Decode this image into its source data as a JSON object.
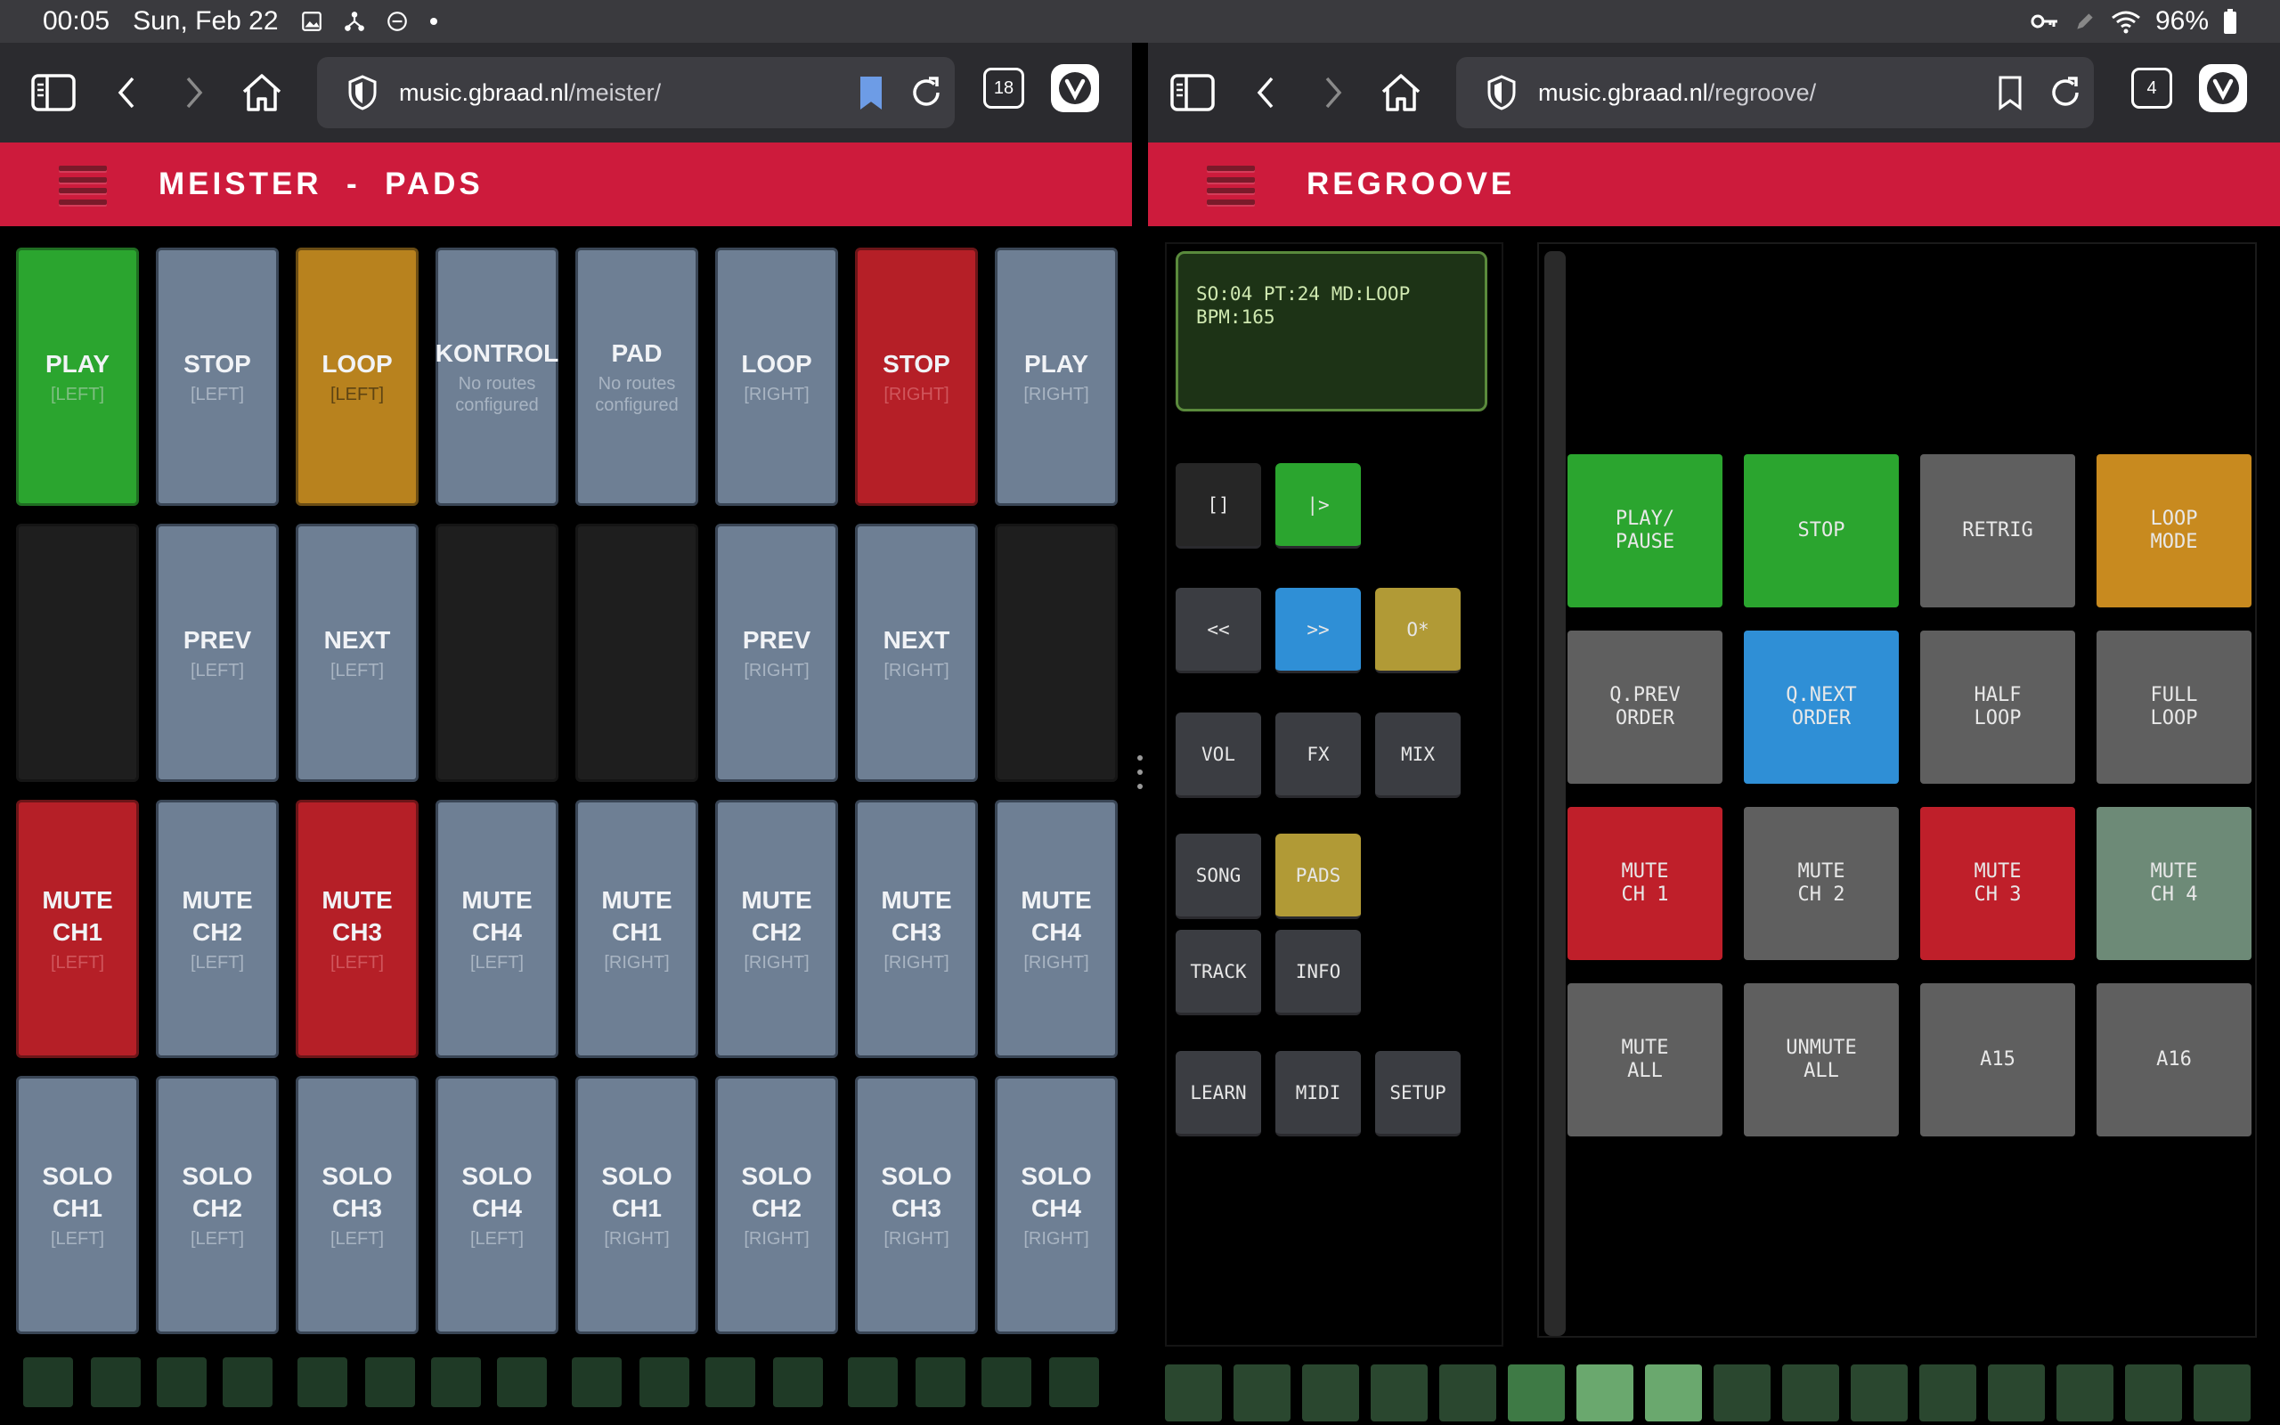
{
  "status_bar": {
    "time": "00:05",
    "date": "Sun, Feb 22",
    "battery": "96%"
  },
  "left_browser": {
    "url_host": "music.gbraad.nl",
    "url_path": "/meister/",
    "tab_count": "18"
  },
  "right_browser": {
    "url_host": "music.gbraad.nl",
    "url_path": "/regroove/",
    "tab_count": "4"
  },
  "meister": {
    "title": "MEISTER  -  PADS",
    "pads": [
      {
        "label": "PLAY",
        "sub": "[LEFT]",
        "color": "green"
      },
      {
        "label": "STOP",
        "sub": "[LEFT]",
        "color": "slate"
      },
      {
        "label": "LOOP",
        "sub": "[LEFT]",
        "color": "orange"
      },
      {
        "label": "KONTROL",
        "sub": "No routes configured",
        "color": "slate"
      },
      {
        "label": "PAD",
        "sub": "No routes configured",
        "color": "slate"
      },
      {
        "label": "LOOP",
        "sub": "[RIGHT]",
        "color": "slate"
      },
      {
        "label": "STOP",
        "sub": "[RIGHT]",
        "color": "red"
      },
      {
        "label": "PLAY",
        "sub": "[RIGHT]",
        "color": "slate"
      },
      {
        "label": "",
        "sub": "",
        "color": "empty"
      },
      {
        "label": "PREV",
        "sub": "[LEFT]",
        "color": "slate"
      },
      {
        "label": "NEXT",
        "sub": "[LEFT]",
        "color": "slate"
      },
      {
        "label": "",
        "sub": "",
        "color": "empty"
      },
      {
        "label": "",
        "sub": "",
        "color": "empty"
      },
      {
        "label": "PREV",
        "sub": "[RIGHT]",
        "color": "slate"
      },
      {
        "label": "NEXT",
        "sub": "[RIGHT]",
        "color": "slate"
      },
      {
        "label": "",
        "sub": "",
        "color": "empty"
      },
      {
        "label": "MUTE CH1",
        "sub": "[LEFT]",
        "color": "red"
      },
      {
        "label": "MUTE CH2",
        "sub": "[LEFT]",
        "color": "slate"
      },
      {
        "label": "MUTE CH3",
        "sub": "[LEFT]",
        "color": "red"
      },
      {
        "label": "MUTE CH4",
        "sub": "[LEFT]",
        "color": "slate"
      },
      {
        "label": "MUTE CH1",
        "sub": "[RIGHT]",
        "color": "slate"
      },
      {
        "label": "MUTE CH2",
        "sub": "[RIGHT]",
        "color": "slate"
      },
      {
        "label": "MUTE CH3",
        "sub": "[RIGHT]",
        "color": "slate"
      },
      {
        "label": "MUTE CH4",
        "sub": "[RIGHT]",
        "color": "slate"
      },
      {
        "label": "SOLO CH1",
        "sub": "[LEFT]",
        "color": "slate"
      },
      {
        "label": "SOLO CH2",
        "sub": "[LEFT]",
        "color": "slate"
      },
      {
        "label": "SOLO CH3",
        "sub": "[LEFT]",
        "color": "slate"
      },
      {
        "label": "SOLO CH4",
        "sub": "[LEFT]",
        "color": "slate"
      },
      {
        "label": "SOLO CH1",
        "sub": "[RIGHT]",
        "color": "slate"
      },
      {
        "label": "SOLO CH2",
        "sub": "[RIGHT]",
        "color": "slate"
      },
      {
        "label": "SOLO CH3",
        "sub": "[RIGHT]",
        "color": "slate"
      },
      {
        "label": "SOLO CH4",
        "sub": "[RIGHT]",
        "color": "slate"
      }
    ],
    "indicators_count": 16
  },
  "regroove": {
    "title": "REGROOVE",
    "lcd": "SO:04 PT:24 MD:LOOP\nBPM:165",
    "side_buttons": [
      {
        "label": "[]",
        "color": "dark"
      },
      {
        "label": "|>",
        "color": "green"
      },
      {
        "label": "<<",
        "color": "gray"
      },
      {
        "label": ">>",
        "color": "blue"
      },
      {
        "label": "O*",
        "color": "gold"
      },
      {
        "label": "VOL",
        "color": "gray"
      },
      {
        "label": "FX",
        "color": "gray"
      },
      {
        "label": "MIX",
        "color": "gray"
      },
      {
        "label": "SONG",
        "color": "gray"
      },
      {
        "label": "PADS",
        "color": "gold"
      },
      {
        "label": "TRACK",
        "color": "gray"
      },
      {
        "label": "INFO",
        "color": "gray"
      },
      {
        "label": "LEARN",
        "color": "gray"
      },
      {
        "label": "MIDI",
        "color": "gray"
      },
      {
        "label": "SETUP",
        "color": "gray"
      }
    ],
    "pads": [
      {
        "label": "PLAY/\nPAUSE",
        "color": "green"
      },
      {
        "label": "STOP",
        "color": "green"
      },
      {
        "label": "RETRIG",
        "color": "gray"
      },
      {
        "label": "LOOP\nMODE",
        "color": "orange"
      },
      {
        "label": "Q.PREV\nORDER",
        "color": "gray"
      },
      {
        "label": "Q.NEXT\nORDER",
        "color": "blue"
      },
      {
        "label": "HALF\nLOOP",
        "color": "gray"
      },
      {
        "label": "FULL\nLOOP",
        "color": "gray"
      },
      {
        "label": "MUTE\nCH 1",
        "color": "red"
      },
      {
        "label": "MUTE\nCH 2",
        "color": "gray"
      },
      {
        "label": "MUTE\nCH 3",
        "color": "red"
      },
      {
        "label": "MUTE\nCH 4",
        "color": "sage"
      },
      {
        "label": "MUTE\nALL",
        "color": "gray"
      },
      {
        "label": "UNMUTE\nALL",
        "color": "gray"
      },
      {
        "label": "A15",
        "color": "gray"
      },
      {
        "label": "A16",
        "color": "gray"
      }
    ],
    "indicators": [
      "#2a472f",
      "#2a472f",
      "#2a472f",
      "#2a472f",
      "#2a472f",
      "#3e7a45",
      "#6aa86e",
      "#6aa86e",
      "#2a472f",
      "#2a472f",
      "#2a472f",
      "#2a472f",
      "#2a472f",
      "#2a472f",
      "#2a472f",
      "#2a472f"
    ]
  }
}
